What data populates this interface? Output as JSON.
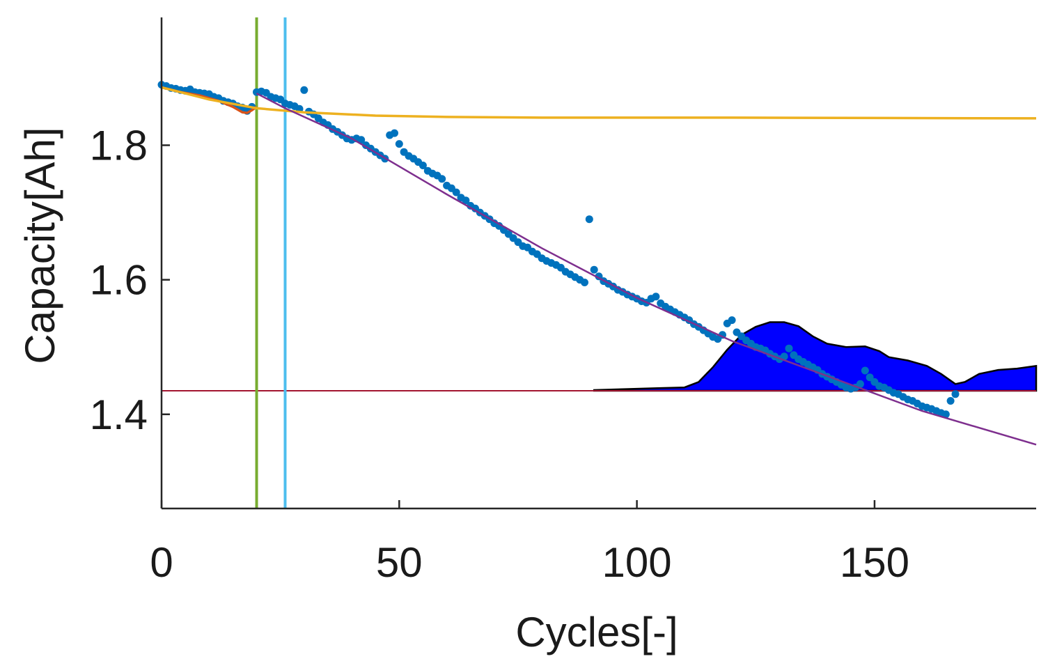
{
  "chart_data": {
    "type": "scatter",
    "title": "",
    "xlabel": "Cycles[-]",
    "ylabel": "Capacity[Ah]",
    "xlim": [
      0,
      184
    ],
    "ylim": [
      1.26,
      1.99
    ],
    "xticks": [
      0,
      50,
      100,
      150
    ],
    "yticks": [
      1.4,
      1.6,
      1.8
    ],
    "xtick_labels": [
      "0",
      "50",
      "100",
      "150"
    ],
    "ytick_labels": [
      "1.4",
      "1.6",
      "1.8"
    ],
    "grid": false,
    "colors": {
      "measured": "#0072BD",
      "early_fit": "#D95319",
      "early_model": "#EDB120",
      "degradation_model": "#7E2F8E",
      "start_marker": "#77AC30",
      "prediction_marker": "#4DBEEE",
      "eol_threshold": "#A2142F",
      "rul_pdf_fill": "#0000FF",
      "rul_pdf_edge": "#000000"
    },
    "vertical_lines": [
      {
        "name": "start-marker",
        "x": 20
      },
      {
        "name": "prediction-marker",
        "x": 26
      }
    ],
    "horizontal_lines": [
      {
        "name": "eol-threshold",
        "y": 1.435
      }
    ],
    "series": [
      {
        "name": "measured-capacity",
        "kind": "scatter",
        "points": [
          [
            0,
            1.89
          ],
          [
            1,
            1.888
          ],
          [
            2,
            1.885
          ],
          [
            3,
            1.884
          ],
          [
            4,
            1.882
          ],
          [
            5,
            1.881
          ],
          [
            6,
            1.883
          ],
          [
            7,
            1.879
          ],
          [
            8,
            1.878
          ],
          [
            9,
            1.877
          ],
          [
            10,
            1.876
          ],
          [
            11,
            1.872
          ],
          [
            12,
            1.87
          ],
          [
            13,
            1.866
          ],
          [
            14,
            1.864
          ],
          [
            15,
            1.862
          ],
          [
            16,
            1.858
          ],
          [
            17,
            1.856
          ],
          [
            18,
            1.851
          ],
          [
            19,
            1.857
          ],
          [
            20,
            1.879
          ],
          [
            21,
            1.88
          ],
          [
            22,
            1.878
          ],
          [
            23,
            1.872
          ],
          [
            24,
            1.87
          ],
          [
            25,
            1.868
          ],
          [
            26,
            1.862
          ],
          [
            27,
            1.86
          ],
          [
            28,
            1.858
          ],
          [
            29,
            1.854
          ],
          [
            30,
            1.882
          ],
          [
            31,
            1.85
          ],
          [
            32,
            1.846
          ],
          [
            33,
            1.84
          ],
          [
            34,
            1.834
          ],
          [
            35,
            1.83
          ],
          [
            36,
            1.824
          ],
          [
            37,
            1.82
          ],
          [
            38,
            1.815
          ],
          [
            39,
            1.81
          ],
          [
            40,
            1.808
          ],
          [
            41,
            1.81
          ],
          [
            42,
            1.808
          ],
          [
            43,
            1.8
          ],
          [
            44,
            1.795
          ],
          [
            45,
            1.79
          ],
          [
            46,
            1.785
          ],
          [
            47,
            1.78
          ],
          [
            48,
            1.815
          ],
          [
            49,
            1.818
          ],
          [
            50,
            1.802
          ],
          [
            51,
            1.79
          ],
          [
            52,
            1.784
          ],
          [
            53,
            1.78
          ],
          [
            54,
            1.775
          ],
          [
            55,
            1.77
          ],
          [
            56,
            1.762
          ],
          [
            57,
            1.758
          ],
          [
            58,
            1.755
          ],
          [
            59,
            1.75
          ],
          [
            60,
            1.74
          ],
          [
            61,
            1.736
          ],
          [
            62,
            1.73
          ],
          [
            63,
            1.722
          ],
          [
            64,
            1.718
          ],
          [
            65,
            1.71
          ],
          [
            66,
            1.706
          ],
          [
            67,
            1.7
          ],
          [
            68,
            1.695
          ],
          [
            69,
            1.69
          ],
          [
            70,
            1.684
          ],
          [
            71,
            1.68
          ],
          [
            72,
            1.674
          ],
          [
            73,
            1.668
          ],
          [
            74,
            1.662
          ],
          [
            75,
            1.656
          ],
          [
            76,
            1.65
          ],
          [
            77,
            1.648
          ],
          [
            78,
            1.642
          ],
          [
            79,
            1.638
          ],
          [
            80,
            1.632
          ],
          [
            81,
            1.628
          ],
          [
            82,
            1.625
          ],
          [
            83,
            1.622
          ],
          [
            84,
            1.618
          ],
          [
            85,
            1.612
          ],
          [
            86,
            1.608
          ],
          [
            87,
            1.604
          ],
          [
            88,
            1.6
          ],
          [
            89,
            1.596
          ],
          [
            90,
            1.69
          ],
          [
            91,
            1.615
          ],
          [
            92,
            1.605
          ],
          [
            93,
            1.598
          ],
          [
            94,
            1.594
          ],
          [
            95,
            1.59
          ],
          [
            96,
            1.585
          ],
          [
            97,
            1.582
          ],
          [
            98,
            1.578
          ],
          [
            99,
            1.575
          ],
          [
            100,
            1.572
          ],
          [
            101,
            1.568
          ],
          [
            102,
            1.566
          ],
          [
            103,
            1.572
          ],
          [
            104,
            1.575
          ],
          [
            105,
            1.565
          ],
          [
            106,
            1.56
          ],
          [
            107,
            1.556
          ],
          [
            108,
            1.552
          ],
          [
            109,
            1.548
          ],
          [
            110,
            1.544
          ],
          [
            111,
            1.54
          ],
          [
            112,
            1.534
          ],
          [
            113,
            1.53
          ],
          [
            114,
            1.525
          ],
          [
            115,
            1.52
          ],
          [
            116,
            1.515
          ],
          [
            117,
            1.512
          ],
          [
            118,
            1.518
          ],
          [
            119,
            1.535
          ],
          [
            120,
            1.54
          ],
          [
            121,
            1.522
          ],
          [
            122,
            1.516
          ],
          [
            123,
            1.51
          ],
          [
            124,
            1.505
          ],
          [
            125,
            1.5
          ],
          [
            126,
            1.498
          ],
          [
            127,
            1.495
          ],
          [
            128,
            1.49
          ],
          [
            129,
            1.486
          ],
          [
            130,
            1.482
          ],
          [
            131,
            1.486
          ],
          [
            132,
            1.498
          ],
          [
            133,
            1.488
          ],
          [
            134,
            1.482
          ],
          [
            135,
            1.478
          ],
          [
            136,
            1.474
          ],
          [
            137,
            1.47
          ],
          [
            138,
            1.466
          ],
          [
            139,
            1.46
          ],
          [
            140,
            1.456
          ],
          [
            141,
            1.452
          ],
          [
            142,
            1.448
          ],
          [
            143,
            1.444
          ],
          [
            144,
            1.44
          ],
          [
            145,
            1.438
          ],
          [
            146,
            1.44
          ],
          [
            147,
            1.445
          ],
          [
            148,
            1.465
          ],
          [
            149,
            1.455
          ],
          [
            150,
            1.448
          ],
          [
            151,
            1.442
          ],
          [
            152,
            1.44
          ],
          [
            153,
            1.436
          ],
          [
            154,
            1.432
          ],
          [
            155,
            1.43
          ],
          [
            156,
            1.426
          ],
          [
            157,
            1.422
          ],
          [
            158,
            1.42
          ],
          [
            159,
            1.416
          ],
          [
            160,
            1.412
          ],
          [
            161,
            1.41
          ],
          [
            162,
            1.408
          ],
          [
            163,
            1.405
          ],
          [
            164,
            1.402
          ],
          [
            165,
            1.4
          ],
          [
            166,
            1.42
          ],
          [
            167,
            1.43
          ]
        ]
      },
      {
        "name": "early-fit",
        "kind": "line",
        "points": [
          [
            0,
            1.886
          ],
          [
            4,
            1.879
          ],
          [
            8,
            1.874
          ],
          [
            12,
            1.866
          ],
          [
            15,
            1.857
          ],
          [
            17,
            1.849
          ],
          [
            18,
            1.848
          ],
          [
            19,
            1.852
          ],
          [
            20,
            1.857
          ]
        ]
      },
      {
        "name": "early-model",
        "kind": "line",
        "points": [
          [
            0,
            1.886
          ],
          [
            10,
            1.868
          ],
          [
            20,
            1.855
          ],
          [
            30,
            1.849
          ],
          [
            45,
            1.844
          ],
          [
            60,
            1.842
          ],
          [
            80,
            1.841
          ],
          [
            120,
            1.841
          ],
          [
            184,
            1.84
          ]
        ]
      },
      {
        "name": "degradation-model",
        "kind": "line",
        "points": [
          [
            20,
            1.877
          ],
          [
            26,
            1.855
          ],
          [
            40,
            1.81
          ],
          [
            60,
            1.727
          ],
          [
            80,
            1.647
          ],
          [
            100,
            1.573
          ],
          [
            120,
            1.509
          ],
          [
            140,
            1.457
          ],
          [
            160,
            1.405
          ],
          [
            184,
            1.355
          ]
        ]
      },
      {
        "name": "rul-pdf",
        "kind": "area",
        "baseline": 1.435,
        "points": [
          [
            91,
            1.436
          ],
          [
            100,
            1.438
          ],
          [
            105,
            1.439
          ],
          [
            110,
            1.44
          ],
          [
            113,
            1.448
          ],
          [
            116,
            1.47
          ],
          [
            119,
            1.496
          ],
          [
            122,
            1.518
          ],
          [
            125,
            1.53
          ],
          [
            128,
            1.537
          ],
          [
            131,
            1.537
          ],
          [
            134,
            1.531
          ],
          [
            137,
            1.516
          ],
          [
            140,
            1.505
          ],
          [
            144,
            1.5
          ],
          [
            148,
            1.501
          ],
          [
            151,
            1.494
          ],
          [
            153,
            1.485
          ],
          [
            157,
            1.48
          ],
          [
            161,
            1.472
          ],
          [
            164,
            1.46
          ],
          [
            167,
            1.445
          ],
          [
            169,
            1.448
          ],
          [
            172,
            1.46
          ],
          [
            176,
            1.466
          ],
          [
            180,
            1.468
          ],
          [
            184,
            1.472
          ]
        ]
      }
    ]
  }
}
